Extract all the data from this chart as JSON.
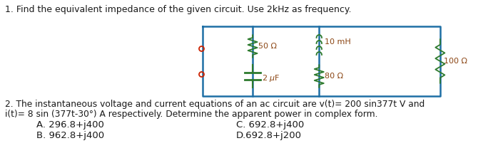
{
  "title1": "1. Find the equivalent impedance of the given circuit. Use 2kHz as frequency.",
  "title2": "2. The instantaneous voltage and current equations of an ac circuit are v(t)= 200 sin377t V and",
  "title2b": "i(t)= 8 sin (377t-30°) A respectively. Determine the apparent power in complex form.",
  "optA": "A. 296.8+j400",
  "optB": "B. 962.8+j400",
  "optC": "C. 692.8+j400",
  "optD": "D.692.8+j200",
  "box_color": "#1e6fa5",
  "resistor_color": "#2d7a2d",
  "inductor_color": "#2d7a2d",
  "capacitor_color": "#2d7a2d",
  "terminal_color": "#cc2200",
  "text_color": "#1a1a1a",
  "label_color": "#8B4513",
  "bg_color": "#ffffff",
  "font_size_title": 9.0,
  "font_size_label": 8.0,
  "font_size_opts": 9.5
}
